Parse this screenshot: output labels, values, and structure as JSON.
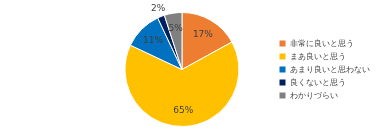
{
  "chart_data": {
    "type": "pie",
    "categories": [
      "非常に良いと思う",
      "まあ良いと思う",
      "あまり良いと思わない",
      "良くないと思う",
      "わかりづらい"
    ],
    "values": [
      17,
      65,
      11,
      2,
      5
    ],
    "value_labels": [
      "17%",
      "65%",
      "11%",
      "2%",
      "5%"
    ],
    "colors": [
      "#ED7D31",
      "#FFC000",
      "#0070C0",
      "#002060",
      "#808080"
    ],
    "data_labels": true,
    "legend": "right"
  }
}
